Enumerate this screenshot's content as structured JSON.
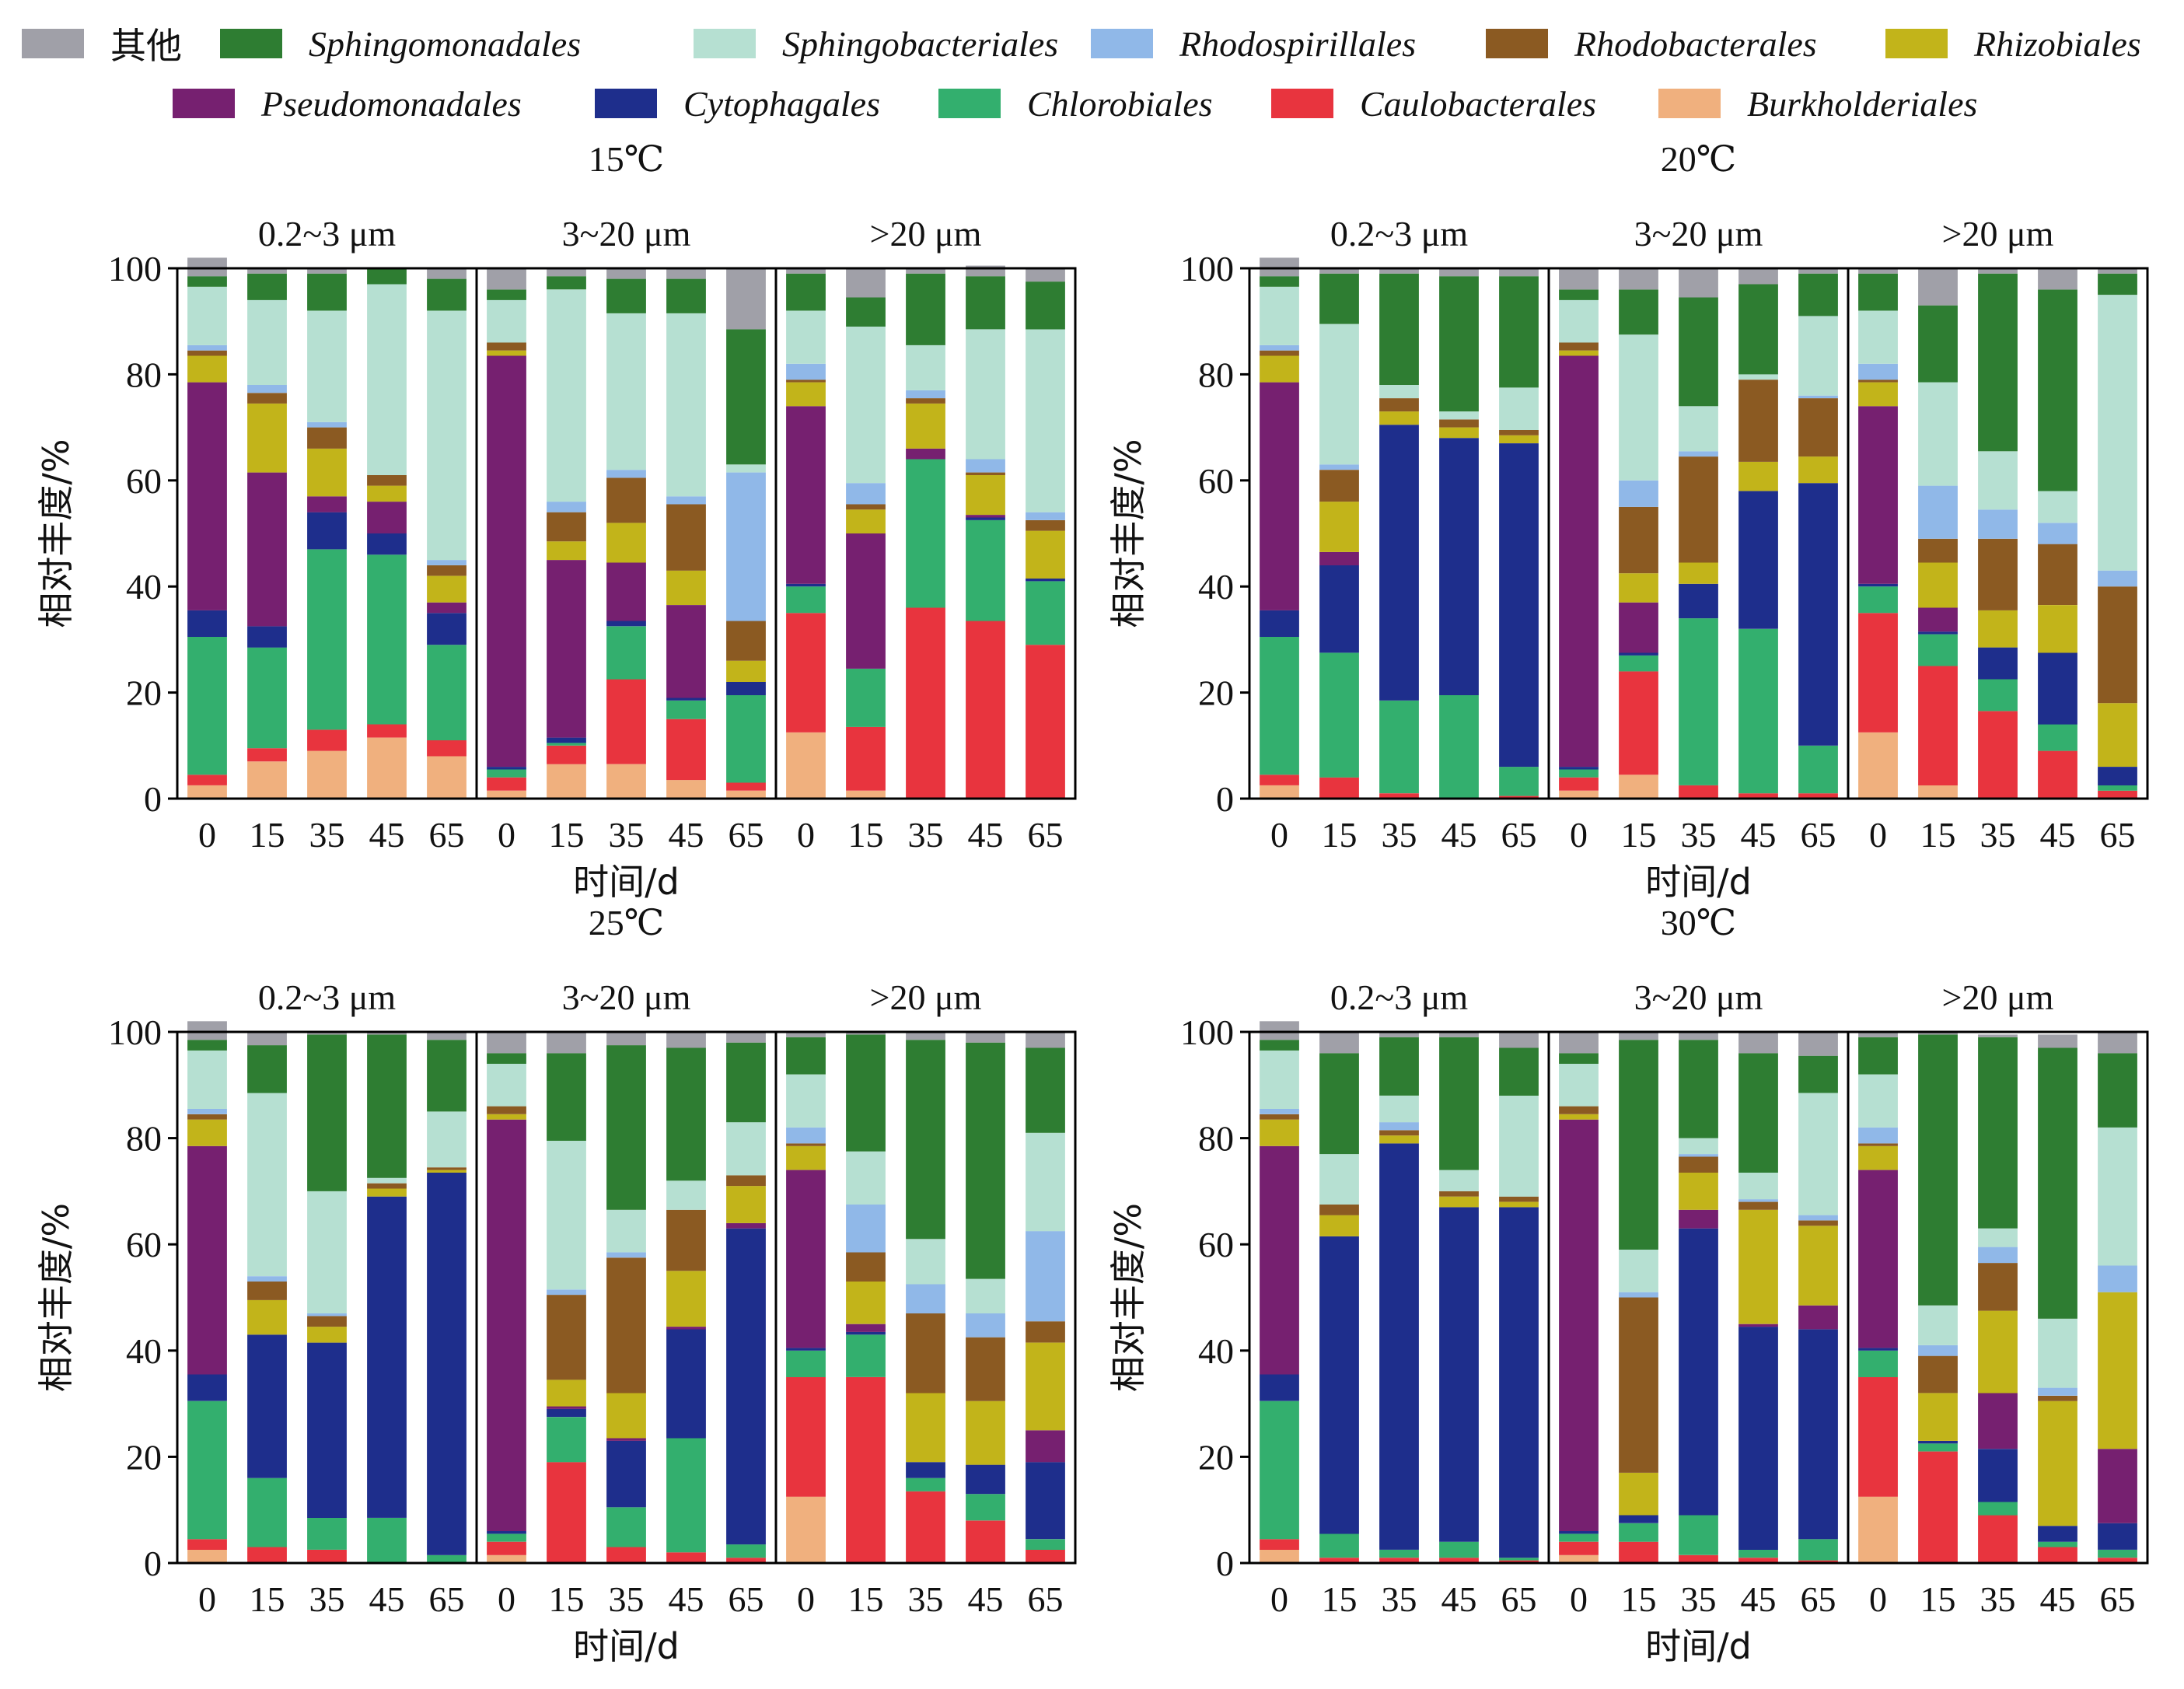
{
  "chart_data": {
    "type": "bar",
    "stacked": true,
    "series_order": [
      "Burkholderiales",
      "Caulobacterales",
      "Chlorobiales",
      "Cytophagales",
      "Pseudomonadales",
      "Rhizobiales",
      "Rhodobacterales",
      "Rhodospirillales",
      "Sphingobacteriales",
      "Sphingomonadales",
      "其他"
    ],
    "legend": [
      {
        "name": "其他",
        "color": "#A0A0A8"
      },
      {
        "name": "Sphingomonadales",
        "color": "#2E7D32"
      },
      {
        "name": "Sphingobacteriales",
        "color": "#B6E0D2"
      },
      {
        "name": "Rhodospirillales",
        "color": "#90B8E8"
      },
      {
        "name": "Rhodobacterales",
        "color": "#8B5A22"
      },
      {
        "name": "Rhizobiales",
        "color": "#C2B41A"
      },
      {
        "name": "Pseudomonadales",
        "color": "#762070"
      },
      {
        "name": "Cytophagales",
        "color": "#1E2E8C"
      },
      {
        "name": "Chlorobiales",
        "color": "#33AF6E"
      },
      {
        "name": "Caulobacterales",
        "color": "#E8343E"
      },
      {
        "name": "Burkholderiales",
        "color": "#F0B07E"
      }
    ],
    "ylabel": "相对丰度/%",
    "xlabel": "时间/d",
    "ylim": [
      0,
      100
    ],
    "yticks": [
      0,
      20,
      40,
      60,
      80,
      100
    ],
    "x": [
      "0",
      "15",
      "35",
      "45",
      "65"
    ],
    "panels": [
      {
        "title": "15℃",
        "groups": [
          {
            "label": "0.2~3 μm",
            "bars": [
              [
                2.5,
                2,
                26,
                5,
                43,
                5,
                1,
                1,
                11,
                2,
                3.5
              ],
              [
                7,
                2.5,
                19,
                4,
                29,
                13,
                2,
                1.5,
                16,
                5,
                1
              ],
              [
                9,
                4,
                34,
                7,
                3,
                9,
                4,
                1,
                21,
                7,
                1
              ],
              [
                11.5,
                2.5,
                32,
                4,
                6,
                3,
                2,
                0,
                36,
                3,
                0
              ],
              [
                8,
                3,
                18,
                6,
                2,
                5,
                2,
                1,
                47,
                6,
                2
              ]
            ]
          },
          {
            "label": "3~20 μm",
            "bars": [
              [
                1.5,
                2.5,
                1.5,
                0.5,
                77.5,
                1,
                1.5,
                0,
                8,
                2,
                4
              ],
              [
                6.5,
                3.5,
                0.5,
                1,
                33.5,
                3.5,
                5.5,
                2,
                40,
                2.5,
                1.5
              ],
              [
                6.5,
                16,
                10,
                1,
                11,
                7.5,
                8.5,
                1.5,
                29.5,
                6.5,
                2
              ],
              [
                3.5,
                11.5,
                3.5,
                0.5,
                17.5,
                6.5,
                12.5,
                1.5,
                34.5,
                6.5,
                2
              ],
              [
                1.5,
                1.5,
                16.5,
                2.5,
                0,
                4,
                7.5,
                28,
                1.5,
                25.5,
                11.5
              ]
            ]
          },
          {
            "label": ">20 μm",
            "bars": [
              [
                12.5,
                22.5,
                5,
                0.5,
                33.5,
                4.5,
                0.5,
                3,
                10,
                7,
                1
              ],
              [
                1.5,
                12,
                11,
                0,
                25.5,
                4.5,
                1,
                4,
                29.5,
                5.5,
                5.5
              ],
              [
                0,
                36,
                28,
                0,
                2,
                8.5,
                1,
                1.5,
                8.5,
                13.5,
                1
              ],
              [
                0,
                33.5,
                19,
                0.5,
                0.5,
                7.5,
                0.5,
                2.5,
                24.5,
                10,
                2
              ],
              [
                0,
                29,
                12,
                0.5,
                0,
                9,
                2,
                1.5,
                34.5,
                9,
                2.5
              ]
            ]
          }
        ]
      },
      {
        "title": "20℃",
        "groups": [
          {
            "label": "0.2~3 μm",
            "bars": [
              [
                2.5,
                2,
                26,
                5,
                43,
                5,
                1,
                1,
                11,
                2,
                3.5
              ],
              [
                0,
                4,
                23.5,
                16.5,
                2.5,
                9.5,
                6,
                1,
                26.5,
                9.5,
                1
              ],
              [
                0,
                1,
                17.5,
                52,
                0,
                2.5,
                2.5,
                0,
                2.5,
                21,
                1
              ],
              [
                0,
                0,
                19.5,
                48.5,
                0,
                2,
                1.5,
                0,
                1.5,
                25.5,
                1.5
              ],
              [
                0,
                0.5,
                5.5,
                61,
                0,
                1.5,
                1,
                0,
                8,
                21,
                1.5
              ]
            ]
          },
          {
            "label": "3~20 μm",
            "bars": [
              [
                1.5,
                2.5,
                1.5,
                0.5,
                77.5,
                1,
                1.5,
                0,
                8,
                2,
                4
              ],
              [
                4.5,
                19.5,
                3,
                0.5,
                9.5,
                5.5,
                12.5,
                5,
                27.5,
                8.5,
                4
              ],
              [
                0,
                2.5,
                31.5,
                6.5,
                0,
                4,
                20,
                1,
                8.5,
                20.5,
                5.5
              ],
              [
                0,
                1,
                31,
                26,
                0,
                5.5,
                15.5,
                0,
                1,
                17,
                3
              ],
              [
                0,
                1,
                9,
                49.5,
                0,
                5,
                11,
                0.5,
                15,
                8,
                1
              ]
            ]
          },
          {
            "label": ">20 μm",
            "bars": [
              [
                12.5,
                22.5,
                5,
                0.5,
                33.5,
                4.5,
                0.5,
                3,
                10,
                7,
                1
              ],
              [
                2.5,
                22.5,
                6,
                0.5,
                4.5,
                8.5,
                4.5,
                10,
                19.5,
                14.5,
                7
              ],
              [
                0,
                16.5,
                6,
                6,
                0,
                7,
                13.5,
                5.5,
                11,
                33.5,
                1
              ],
              [
                0,
                9,
                5,
                13.5,
                0,
                9,
                11.5,
                4,
                6,
                38,
                4
              ],
              [
                0,
                1.5,
                1,
                3.5,
                0,
                12,
                22,
                3,
                52,
                4,
                1
              ]
            ]
          }
        ]
      },
      {
        "title": "25℃",
        "groups": [
          {
            "label": "0.2~3 μm",
            "bars": [
              [
                2.5,
                2,
                26,
                5,
                43,
                5,
                1,
                1,
                11,
                2,
                3.5
              ],
              [
                0,
                3,
                13,
                27,
                0,
                6.5,
                3.5,
                1,
                34.5,
                9,
                2.5
              ],
              [
                0,
                2.5,
                6,
                33,
                0,
                3,
                2,
                0.5,
                23,
                29.5,
                0.5
              ],
              [
                0,
                0,
                8.5,
                60.5,
                0,
                1.5,
                1,
                0,
                1,
                27,
                0.5
              ],
              [
                0,
                0,
                1.5,
                72,
                0,
                0.5,
                0.5,
                0,
                10.5,
                13.5,
                1.5
              ]
            ]
          },
          {
            "label": "3~20 μm",
            "bars": [
              [
                1.5,
                2.5,
                1.5,
                0.5,
                77.5,
                1,
                1.5,
                0,
                8,
                2,
                4
              ],
              [
                0,
                19,
                8.5,
                1.5,
                0.5,
                5,
                16,
                1,
                28,
                16.5,
                4
              ],
              [
                0,
                3,
                7.5,
                12.5,
                0.5,
                8.5,
                25.5,
                1,
                8,
                31,
                2.5
              ],
              [
                0,
                2,
                21.5,
                20.5,
                0.5,
                10.5,
                11.5,
                0,
                5.5,
                25,
                3
              ],
              [
                0,
                1,
                2.5,
                59.5,
                1,
                7,
                2,
                0,
                10,
                15,
                2
              ]
            ]
          },
          {
            "label": ">20 μm",
            "bars": [
              [
                12.5,
                22.5,
                5,
                0.5,
                33.5,
                4.5,
                0.5,
                3,
                10,
                7,
                1
              ],
              [
                0,
                35,
                8,
                0.5,
                1.5,
                8,
                5.5,
                9,
                10,
                22,
                0.5
              ],
              [
                0,
                13.5,
                2.5,
                3,
                0,
                13,
                15,
                5.5,
                8.5,
                37.5,
                1.5
              ],
              [
                0,
                8,
                5,
                5.5,
                0,
                12,
                12,
                4.5,
                6.5,
                44.5,
                2
              ],
              [
                0,
                2.5,
                2,
                14.5,
                6,
                16.5,
                4,
                17,
                18.5,
                16,
                3
              ]
            ]
          }
        ]
      },
      {
        "title": "30℃",
        "groups": [
          {
            "label": "0.2~3 μm",
            "bars": [
              [
                2.5,
                2,
                26,
                5,
                43,
                5,
                1,
                1,
                11,
                2,
                3.5
              ],
              [
                0,
                1,
                4.5,
                56,
                0,
                4,
                2,
                0,
                9.5,
                19,
                4
              ],
              [
                0,
                1,
                1.5,
                76.5,
                0,
                1.5,
                1,
                1.5,
                5,
                11,
                1
              ],
              [
                0,
                1,
                3,
                63,
                0,
                2,
                1,
                0,
                4,
                25,
                1
              ],
              [
                0,
                0.5,
                0.5,
                66,
                0,
                1,
                1,
                0,
                19,
                9,
                3
              ]
            ]
          },
          {
            "label": "3~20 μm",
            "bars": [
              [
                1.5,
                2.5,
                1.5,
                0.5,
                77.5,
                1,
                1.5,
                0,
                8,
                2,
                4
              ],
              [
                0,
                4,
                3.5,
                1.5,
                0,
                8,
                33,
                1,
                8,
                39.5,
                1.5
              ],
              [
                0,
                1.5,
                7.5,
                54,
                3.5,
                7,
                3,
                0.5,
                3,
                18.5,
                1.5
              ],
              [
                0,
                1,
                1.5,
                42,
                0.5,
                21.5,
                1.5,
                0.5,
                5,
                22.5,
                4
              ],
              [
                0,
                0.5,
                4,
                39.5,
                4.5,
                15,
                1,
                1,
                23,
                7,
                4.5
              ]
            ]
          },
          {
            "label": ">20 μm",
            "bars": [
              [
                12.5,
                22.5,
                5,
                0.5,
                33.5,
                4.5,
                0.5,
                3,
                10,
                7,
                1
              ],
              [
                0,
                21,
                1.5,
                0.5,
                0,
                9,
                7,
                2,
                7.5,
                51,
                0.5
              ],
              [
                0,
                9,
                2.5,
                10,
                10.5,
                15.5,
                9,
                3,
                3.5,
                36,
                0.5
              ],
              [
                0,
                3,
                1,
                3,
                0,
                23.5,
                1,
                1.5,
                13,
                51,
                2.5
              ],
              [
                0,
                1,
                1.5,
                5,
                14,
                29.5,
                0,
                5,
                26,
                14,
                4
              ]
            ]
          }
        ]
      }
    ]
  }
}
